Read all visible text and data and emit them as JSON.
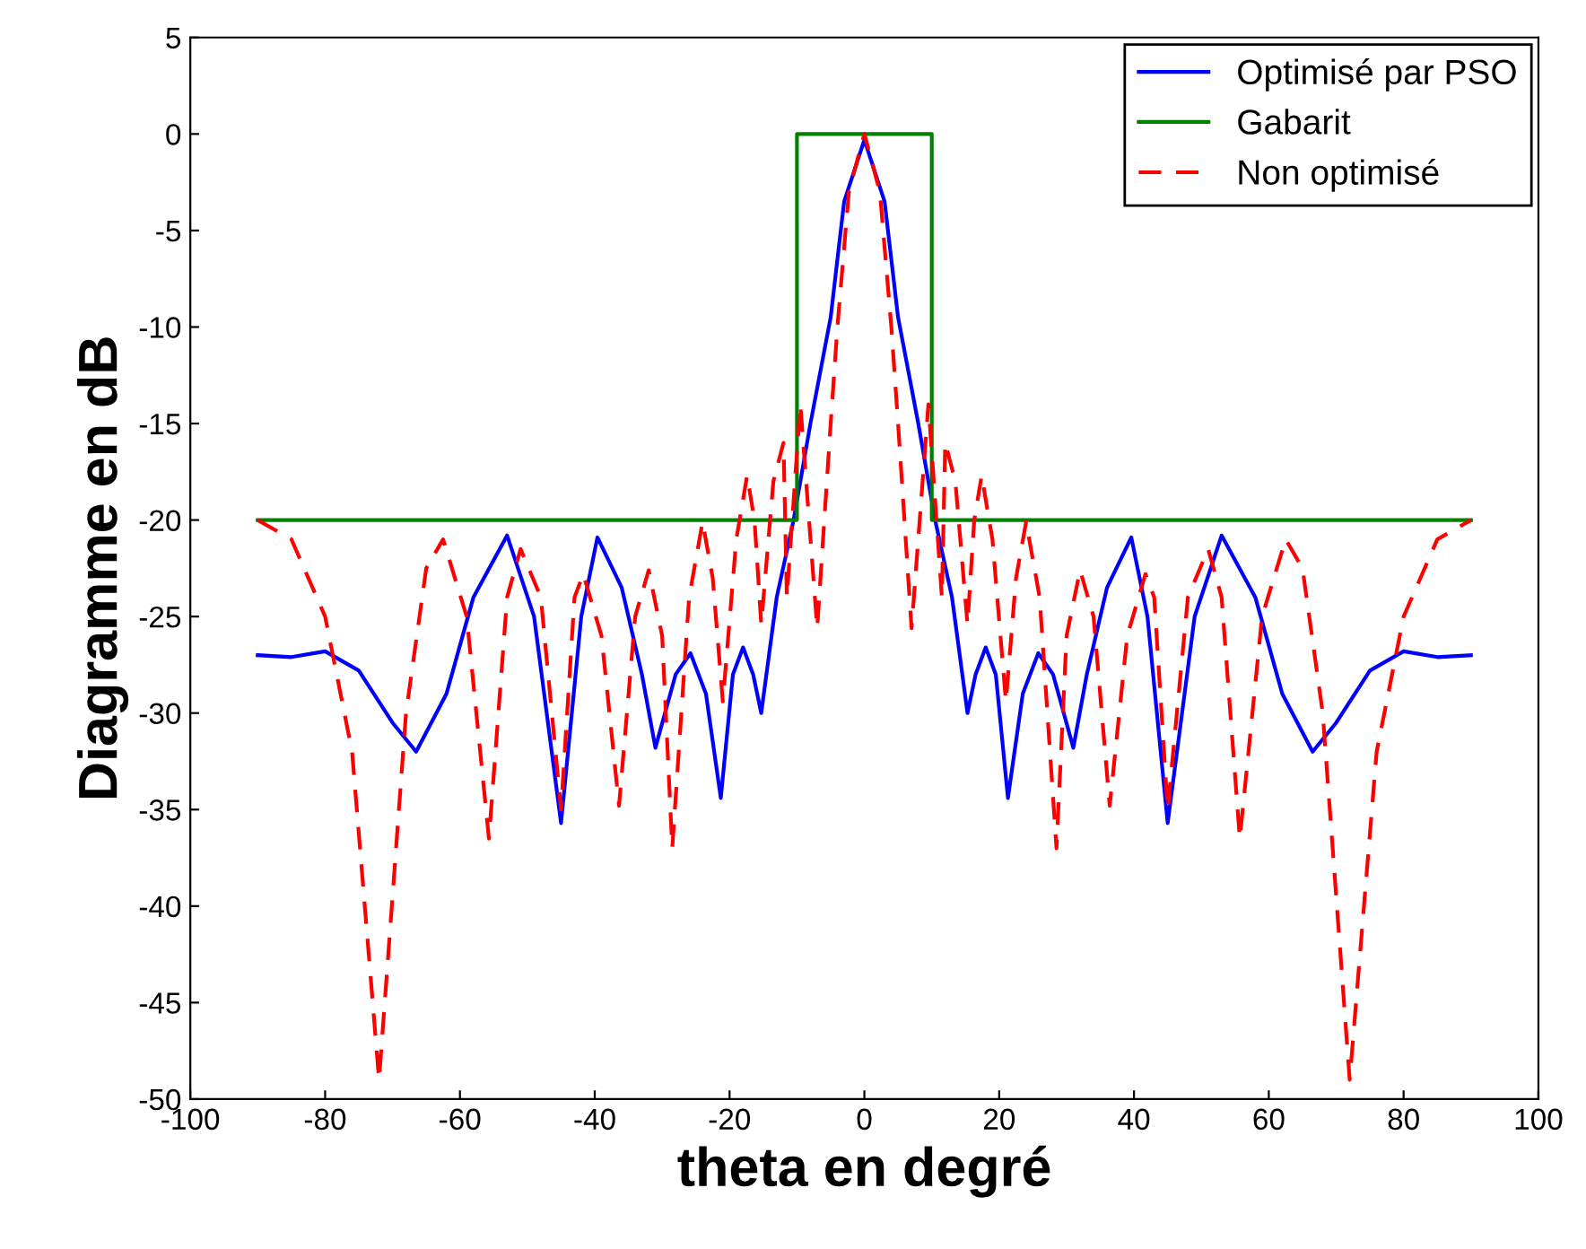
{
  "chart_data": {
    "type": "line",
    "xlabel": "theta en degré",
    "ylabel": "Diagramme en dB",
    "xlim": [
      -100,
      100
    ],
    "xticks": [
      -100,
      -80,
      -60,
      -40,
      -20,
      0,
      20,
      40,
      60,
      80,
      100
    ],
    "ylim": [
      -50,
      5
    ],
    "yticks": [
      -50,
      -45,
      -40,
      -35,
      -30,
      -25,
      -20,
      -15,
      -10,
      -5,
      0,
      5
    ],
    "grid": false,
    "legend": "top right",
    "series": [
      {
        "name": "Optimisé par PSO",
        "color": "#0000ff",
        "line_style": "solid",
        "x": [
          -90,
          -85,
          -80,
          -75,
          -70,
          -66.5,
          -62,
          -58,
          -53,
          -49,
          -45,
          -42,
          -39.6,
          -36,
          -33,
          -31,
          -28,
          -25.8,
          -23.5,
          -21.3,
          -19.5,
          -18,
          -16.5,
          -15.3,
          -13,
          -10.5,
          -8,
          -5,
          -3,
          0,
          3,
          5,
          8,
          10.5,
          13,
          15.3,
          16.5,
          18,
          19.5,
          21.3,
          23.5,
          25.8,
          28,
          31,
          33,
          36,
          39.6,
          42,
          45,
          49,
          53,
          58,
          62,
          66.5,
          70,
          75,
          80,
          85,
          90
        ],
        "values": [
          -27,
          -27.1,
          -26.8,
          -27.8,
          -30.5,
          -32,
          -29,
          -24,
          -20.8,
          -25,
          -35.7,
          -25,
          -20.9,
          -23.5,
          -28,
          -31.8,
          -28,
          -26.9,
          -29,
          -34.4,
          -28,
          -26.6,
          -28,
          -30,
          -24,
          -20,
          -15,
          -9.5,
          -3.5,
          -0.3,
          -3.5,
          -9.5,
          -15,
          -20,
          -24,
          -30,
          -28,
          -26.6,
          -28,
          -34.4,
          -29,
          -26.9,
          -28,
          -31.8,
          -28,
          -23.5,
          -20.9,
          -25,
          -35.7,
          -25,
          -20.8,
          -24,
          -29,
          -32,
          -30.5,
          -27.8,
          -26.8,
          -27.1,
          -27
        ]
      },
      {
        "name": "Gabarit",
        "color": "#008000",
        "line_style": "solid",
        "x": [
          -90,
          -10,
          -10,
          10,
          10,
          90
        ],
        "values": [
          -20,
          -20,
          0,
          0,
          -20,
          -20
        ]
      },
      {
        "name": "Non optimisé",
        "color": "#ff0000",
        "line_style": "dashed",
        "x": [
          -90,
          -85,
          -80,
          -76,
          -72,
          -68,
          -65,
          -62.5,
          -59,
          -55.7,
          -53,
          -51,
          -48,
          -45,
          -43,
          -41.7,
          -39,
          -36.4,
          -34,
          -32,
          -30,
          -28.5,
          -26,
          -24,
          -22.5,
          -21,
          -19,
          -17.4,
          -16.3,
          -15.3,
          -13.5,
          -12,
          -11.5,
          -9.5,
          -7,
          -5,
          -4,
          -2.3,
          0,
          2.3,
          4,
          5,
          7,
          9.5,
          11.5,
          12,
          13.5,
          15.3,
          16.3,
          17.4,
          19,
          21,
          22.5,
          24,
          26,
          28.5,
          30,
          32,
          34,
          36.4,
          39,
          41.7,
          43,
          45,
          48,
          51,
          53,
          55.7,
          59,
          62.5,
          65,
          68,
          72,
          76,
          80,
          85,
          90
        ],
        "values": [
          -20,
          -21,
          -25,
          -32,
          -49,
          -30,
          -22.5,
          -21,
          -25,
          -36.5,
          -24,
          -21.5,
          -24,
          -35,
          -24,
          -22.8,
          -26,
          -34.8,
          -25,
          -22.6,
          -26,
          -37,
          -24,
          -20.1,
          -23,
          -29.4,
          -21,
          -17.7,
          -20,
          -25.4,
          -18,
          -16,
          -24,
          -14,
          -25.6,
          -15,
          -10,
          -3,
          0,
          -3,
          -10,
          -15,
          -25.6,
          -14,
          -24,
          -16,
          -18,
          -25.4,
          -20,
          -17.7,
          -21,
          -29.4,
          -23,
          -20.1,
          -24,
          -37,
          -26,
          -22.6,
          -25,
          -34.8,
          -26,
          -22.8,
          -24,
          -35,
          -24,
          -21.5,
          -24,
          -36.5,
          -25,
          -21,
          -22.5,
          -30,
          -49,
          -32,
          -25,
          -21,
          -20
        ]
      }
    ]
  }
}
